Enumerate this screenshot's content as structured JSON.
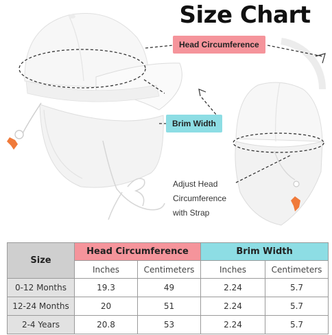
{
  "title": "Size Chart",
  "labels": {
    "head_circumference": "Head Circumference",
    "brim_width": "Brim Width",
    "adjust_note": [
      "Adjust Head",
      "Circumference",
      "with Strap"
    ]
  },
  "colors": {
    "pink": "#f5949b",
    "cyan": "#8ddde4",
    "gray_header": "#cfcfcf",
    "gray_row": "#e2e2e2",
    "toggle_orange": "#f07a3a"
  },
  "table": {
    "size_header": "Size",
    "group_head": "Head Circumference",
    "group_brim": "Brim Width",
    "sub_headers": [
      "Inches",
      "Centimeters",
      "Inches",
      "Centimeters"
    ],
    "rows": [
      {
        "size": "0-12 Months",
        "head_in": "19.3",
        "head_cm": "49",
        "brim_in": "2.24",
        "brim_cm": "5.7"
      },
      {
        "size": "12-24 Months",
        "head_in": "20",
        "head_cm": "51",
        "brim_in": "2.24",
        "brim_cm": "5.7"
      },
      {
        "size": "2-4 Years",
        "head_in": "20.8",
        "head_cm": "53",
        "brim_in": "2.24",
        "brim_cm": "5.7"
      }
    ]
  },
  "icons": [
    "hat-front-illustration",
    "hat-back-illustration",
    "strap-toggle-icon"
  ]
}
